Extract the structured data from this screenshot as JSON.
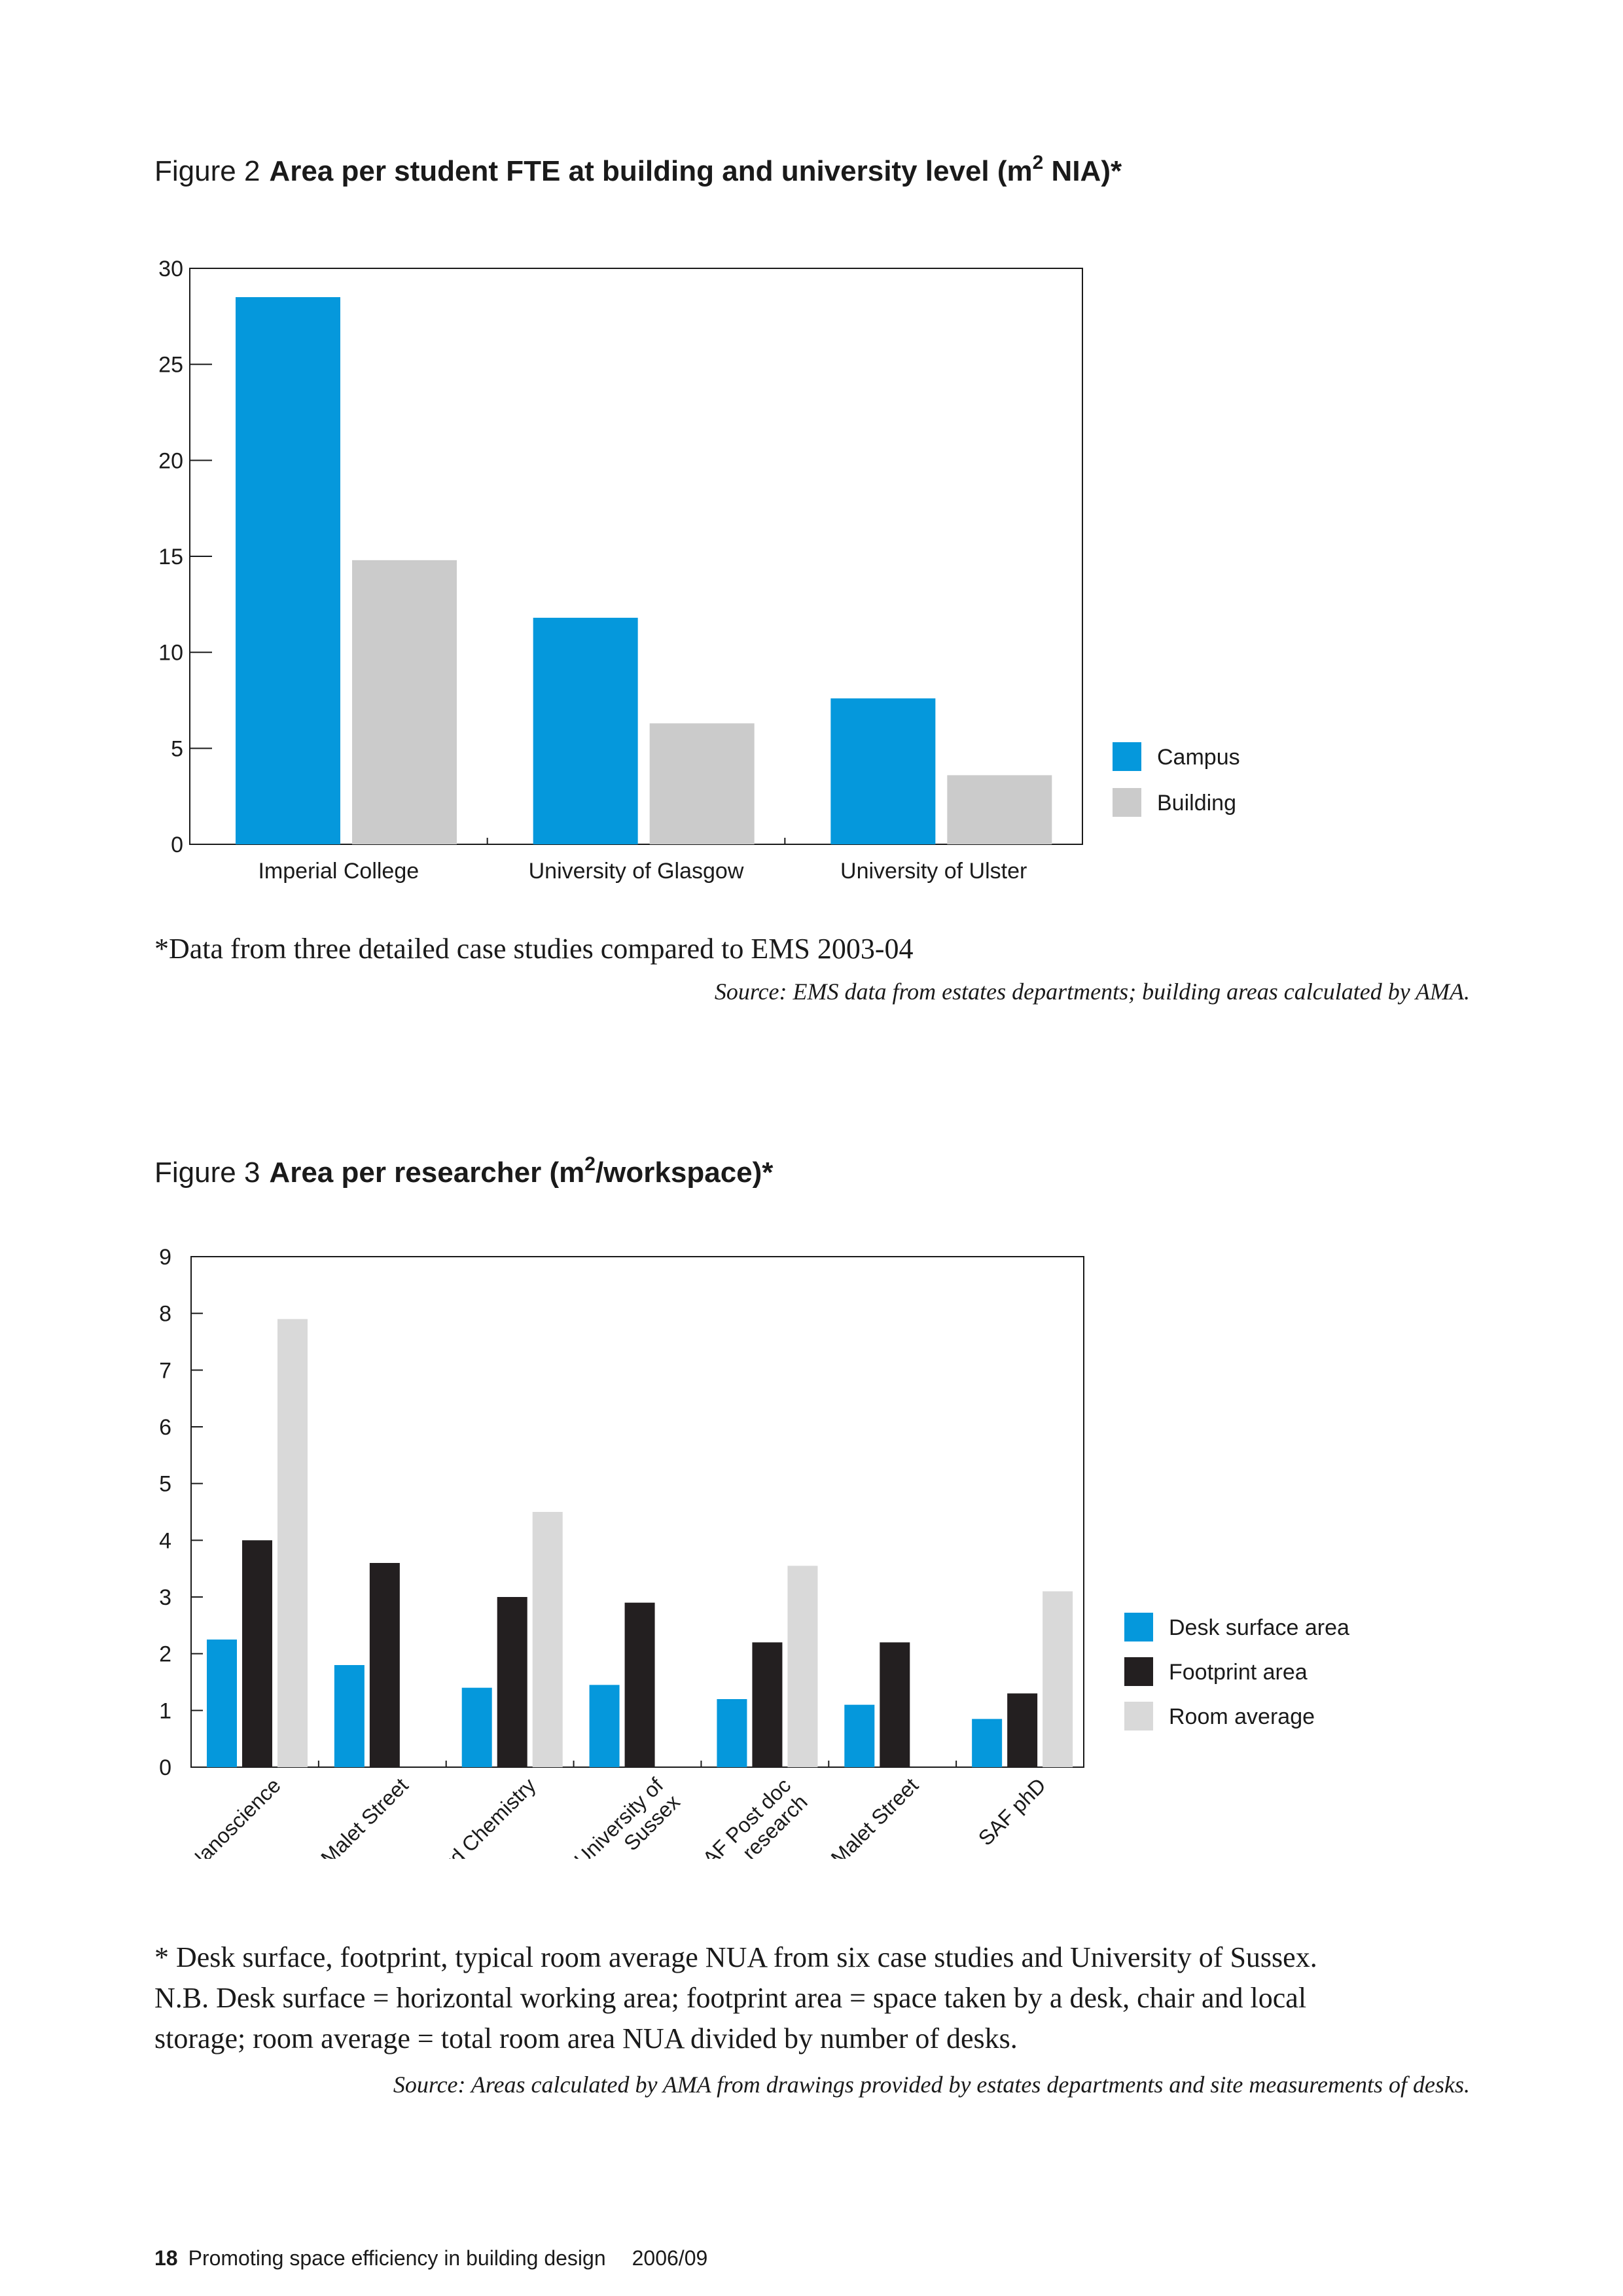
{
  "figures": [
    {
      "label": "Figure 2",
      "title_pre": "Area per student FTE at building and university level (m",
      "title_sup": "2",
      "title_post": " NIA)*",
      "note": "*Data from three detailed case studies compared to EMS 2003-04",
      "source": "Source: EMS data from estates departments; building areas calculated by AMA."
    },
    {
      "label": "Figure 3",
      "title_pre": "Area per researcher (m",
      "title_sup": "2",
      "title_post": "/workspace)*",
      "note_lines": [
        "* Desk surface, footprint, typical room average NUA from six case studies and University of Sussex.",
        "N.B. Desk surface = horizontal working area; footprint area = space taken by a desk, chair and local",
        "storage; room average = total room area NUA divided by number of desks."
      ],
      "source": "Source: Areas calculated by AMA from drawings provided by estates departments and site measurements of desks."
    }
  ],
  "chart_data": [
    {
      "type": "bar",
      "title": "Area per student FTE at building and university level (m2 NIA)*",
      "categories": [
        "Imperial College",
        "University of Glasgow",
        "University of Ulster"
      ],
      "series": [
        {
          "name": "Campus",
          "color": "#0598dc",
          "values": [
            28.5,
            11.8,
            7.6
          ]
        },
        {
          "name": "Building",
          "color": "#cbcbcb",
          "values": [
            14.8,
            6.3,
            3.6
          ]
        }
      ],
      "yticks": [
        0,
        5,
        10,
        15,
        20,
        25,
        30
      ],
      "ylim": [
        0,
        30
      ],
      "xlabel": "",
      "ylabel": "",
      "legend_position": "right",
      "grid": false
    },
    {
      "type": "bar",
      "title": "Area per researcher (m2/workspace)*",
      "categories": [
        "Nanoscience",
        "Malet Street",
        "Oxford Chemistry",
        "University of Sussex",
        "SAF Post doc research",
        "Malet Street",
        "SAF phD"
      ],
      "category_lines": [
        [
          "Nanoscience"
        ],
        [
          "Malet Street"
        ],
        [
          "Oxford Chemistry"
        ],
        [
          "University of",
          "Sussex"
        ],
        [
          "SAF Post doc",
          "research"
        ],
        [
          "Malet Street"
        ],
        [
          "SAF phD"
        ]
      ],
      "series": [
        {
          "name": "Desk surface area",
          "color": "#0598dc",
          "values": [
            2.25,
            1.8,
            1.4,
            1.45,
            1.2,
            1.1,
            0.85
          ]
        },
        {
          "name": "Footprint area",
          "color": "#231f20",
          "values": [
            4.0,
            3.6,
            3.0,
            2.9,
            2.2,
            2.2,
            1.3
          ]
        },
        {
          "name": "Room average",
          "color": "#d9d9d9",
          "values": [
            7.9,
            null,
            4.5,
            null,
            3.55,
            null,
            3.1
          ]
        }
      ],
      "yticks": [
        0,
        1,
        2,
        3,
        4,
        5,
        6,
        7,
        8,
        9
      ],
      "ylim": [
        0,
        9
      ],
      "xlabel": "",
      "ylabel": "",
      "legend_position": "right",
      "grid": false
    }
  ],
  "footer": {
    "page_number": "18",
    "doc_title": "Promoting space efficiency in building design",
    "year": "2006/09"
  }
}
